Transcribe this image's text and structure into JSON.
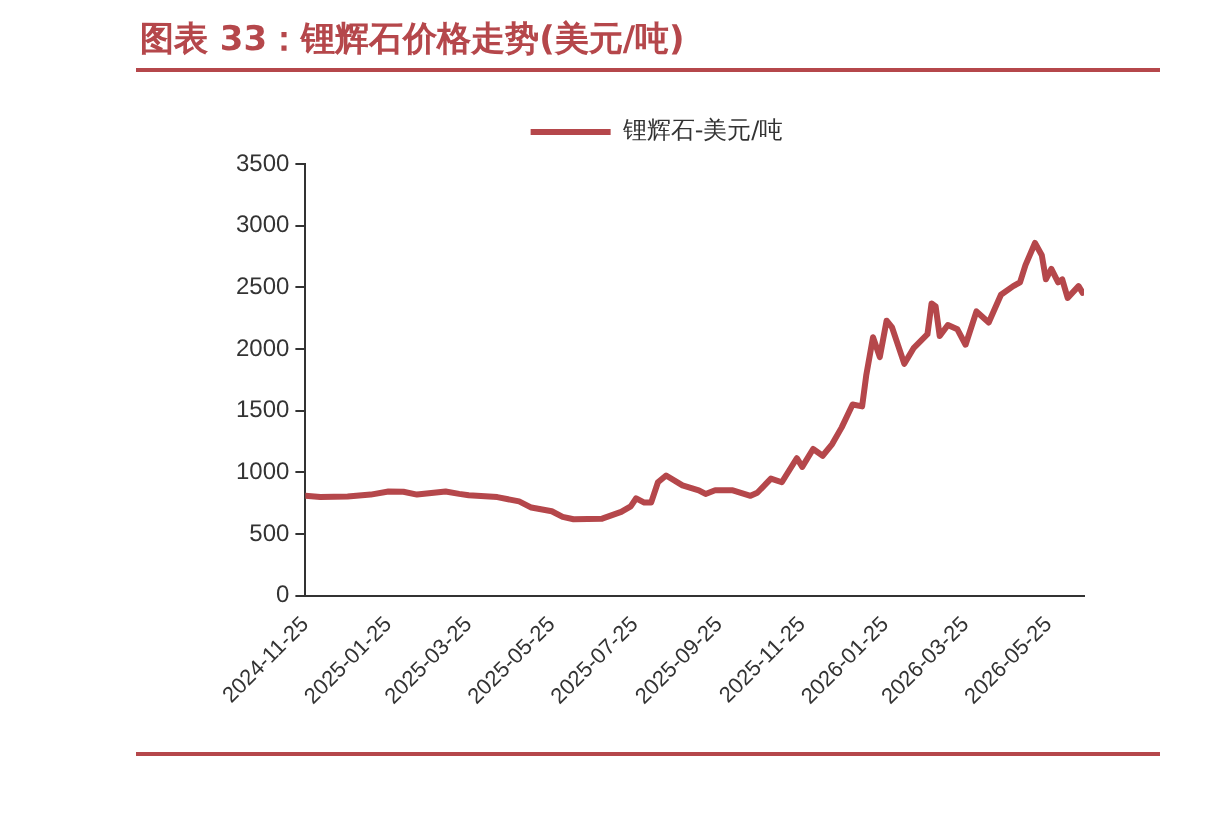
{
  "chart_data": {
    "type": "line",
    "title": "图表 33：锂辉石价格走势(美元/吨)",
    "x": [
      "2024-11-25",
      "2024-12-06",
      "2024-12-26",
      "2025-01-12",
      "2025-01-25",
      "2025-02-05",
      "2025-02-15",
      "2025-03-08",
      "2025-03-18",
      "2025-03-25",
      "2025-04-15",
      "2025-05-01",
      "2025-05-10",
      "2025-05-25",
      "2025-06-02",
      "2025-06-10",
      "2025-07-01",
      "2025-07-15",
      "2025-07-22",
      "2025-07-26",
      "2025-08-01",
      "2025-08-06",
      "2025-08-11",
      "2025-08-17",
      "2025-08-29",
      "2025-09-10",
      "2025-09-15",
      "2025-09-22",
      "2025-10-05",
      "2025-10-18",
      "2025-10-23",
      "2025-11-02",
      "2025-11-10",
      "2025-11-21",
      "2025-11-25",
      "2025-12-03",
      "2025-12-10",
      "2025-12-17",
      "2025-12-24",
      "2026-01-01",
      "2026-01-08",
      "2026-01-11",
      "2026-01-16",
      "2026-01-21",
      "2026-01-26",
      "2026-01-30",
      "2026-02-08",
      "2026-02-15",
      "2026-02-25",
      "2026-02-28",
      "2026-03-03",
      "2026-03-06",
      "2026-03-12",
      "2026-03-19",
      "2026-03-25",
      "2026-04-02",
      "2026-04-11",
      "2026-04-20",
      "2026-04-29",
      "2026-05-04",
      "2026-05-08",
      "2026-05-15",
      "2026-05-20",
      "2026-05-23",
      "2026-05-27",
      "2026-06-01",
      "2026-06-04",
      "2026-06-08",
      "2026-06-16",
      "2026-06-19"
    ],
    "series": [
      {
        "name": "锂辉石-美元/吨",
        "color": "#b5474b",
        "values": [
          810,
          800,
          805,
          820,
          845,
          843,
          820,
          845,
          826,
          815,
          800,
          765,
          715,
          685,
          640,
          620,
          625,
          680,
          725,
          790,
          755,
          755,
          920,
          975,
          895,
          855,
          825,
          855,
          855,
          810,
          835,
          950,
          920,
          1115,
          1045,
          1190,
          1135,
          1230,
          1365,
          1550,
          1535,
          1785,
          2095,
          1935,
          2230,
          2175,
          1880,
          2010,
          2120,
          2370,
          2345,
          2105,
          2195,
          2160,
          2035,
          2305,
          2215,
          2440,
          2510,
          2540,
          2680,
          2860,
          2760,
          2565,
          2650,
          2540,
          2565,
          2415,
          2510,
          2455
        ]
      }
    ],
    "xlim": [
      "2024-11-25",
      "2026-06-20"
    ],
    "xticks": [
      "2024-11-25",
      "2025-01-25",
      "2025-03-25",
      "2025-05-25",
      "2025-07-25",
      "2025-09-25",
      "2025-11-25",
      "2026-01-25",
      "2026-03-25",
      "2026-05-25"
    ],
    "ylim": [
      0,
      3500
    ],
    "yticks": [
      0,
      500,
      1000,
      1500,
      2000,
      2500,
      3000,
      3500
    ],
    "grid": false,
    "legend": "top",
    "marker": "none",
    "line_style": "solid"
  }
}
